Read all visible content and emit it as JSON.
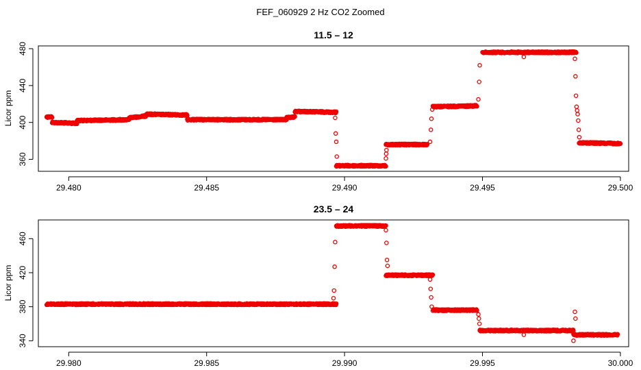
{
  "figure_title": "FEF_060929  2 Hz CO2 Zoomed",
  "chart_data": [
    {
      "type": "scatter",
      "title": "11.5 – 12",
      "xlabel": "",
      "ylabel": "Licor ppm",
      "xlim": [
        29.4789,
        29.5003
      ],
      "ylim": [
        347,
        483
      ],
      "xticks": [
        29.48,
        29.485,
        29.49,
        29.495,
        29.5
      ],
      "xtick_labels": [
        "29.480",
        "29.485",
        "29.490",
        "29.495",
        "29.500"
      ],
      "yticks": [
        360,
        400,
        440,
        480
      ],
      "ytick_labels": [
        "360",
        "400",
        "440",
        "480"
      ],
      "marker": "open-circle",
      "color": "#ee0000",
      "grid": false,
      "series": [
        {
          "segments": [
            {
              "x": [
                29.4792,
                29.4794
              ],
              "y": [
                406,
                406
              ]
            },
            {
              "x": [
                29.4794,
                29.4803
              ],
              "y": [
                400,
                399
              ]
            },
            {
              "x": [
                29.4803,
                29.4822
              ],
              "y": [
                402,
                403
              ]
            },
            {
              "x": [
                29.4822,
                29.4828
              ],
              "y": [
                405,
                407
              ]
            },
            {
              "x": [
                29.4828,
                29.4843
              ],
              "y": [
                409,
                408
              ]
            },
            {
              "x": [
                29.4843,
                29.4879
              ],
              "y": [
                403,
                403
              ]
            },
            {
              "x": [
                29.4879,
                29.4882
              ],
              "y": [
                405,
                406
              ]
            },
            {
              "x": [
                29.4882,
                29.4897
              ],
              "y": [
                412,
                411
              ]
            },
            {
              "x": [
                29.4897,
                29.4915
              ],
              "y": [
                353,
                353
              ]
            },
            {
              "x": [
                29.4915,
                29.493
              ],
              "y": [
                376,
                376
              ]
            },
            {
              "x": [
                29.4932,
                29.4948
              ],
              "y": [
                417,
                418
              ]
            },
            {
              "x": [
                29.495,
                29.4984
              ],
              "y": [
                476,
                476
              ]
            },
            {
              "x": [
                29.4985,
                29.5
              ],
              "y": [
                378,
                377
              ]
            }
          ],
          "points": [
            {
              "x": 29.48966,
              "y": 405
            },
            {
              "x": 29.48968,
              "y": 388
            },
            {
              "x": 29.4897,
              "y": 379
            },
            {
              "x": 29.48972,
              "y": 363
            },
            {
              "x": 29.4915,
              "y": 361
            },
            {
              "x": 29.49151,
              "y": 366
            },
            {
              "x": 29.49152,
              "y": 370
            },
            {
              "x": 29.4931,
              "y": 379
            },
            {
              "x": 29.49313,
              "y": 392
            },
            {
              "x": 29.49315,
              "y": 404
            },
            {
              "x": 29.49318,
              "y": 414
            },
            {
              "x": 29.49485,
              "y": 425
            },
            {
              "x": 29.49488,
              "y": 444
            },
            {
              "x": 29.4949,
              "y": 462
            },
            {
              "x": 29.4965,
              "y": 471
            },
            {
              "x": 29.49835,
              "y": 469
            },
            {
              "x": 29.49837,
              "y": 450
            },
            {
              "x": 29.49839,
              "y": 429
            },
            {
              "x": 29.49841,
              "y": 417
            },
            {
              "x": 29.49843,
              "y": 413
            },
            {
              "x": 29.49845,
              "y": 409
            },
            {
              "x": 29.49847,
              "y": 402
            },
            {
              "x": 29.49849,
              "y": 392
            },
            {
              "x": 29.49851,
              "y": 384
            }
          ]
        }
      ]
    },
    {
      "type": "scatter",
      "title": "23.5 – 24",
      "xlabel": "",
      "ylabel": "Licor ppm",
      "xlim": [
        29.9789,
        30.0003
      ],
      "ylim": [
        333,
        482
      ],
      "xticks": [
        29.98,
        29.985,
        29.99,
        29.995,
        30.0
      ],
      "xtick_labels": [
        "29.980",
        "29.985",
        "29.990",
        "29.995",
        "30.000"
      ],
      "yticks": [
        340,
        380,
        420,
        460
      ],
      "ytick_labels": [
        "340",
        "380",
        "420",
        "460"
      ],
      "marker": "open-circle",
      "color": "#ee0000",
      "grid": false,
      "series": [
        {
          "segments": [
            {
              "x": [
                29.9792,
                29.9897
              ],
              "y": [
                383,
                383
              ]
            },
            {
              "x": [
                29.9897,
                29.9915
              ],
              "y": [
                475,
                475
              ]
            },
            {
              "x": [
                29.9915,
                29.9932
              ],
              "y": [
                417,
                417
              ]
            },
            {
              "x": [
                29.9932,
                29.9948
              ],
              "y": [
                376,
                376
              ]
            },
            {
              "x": [
                29.9949,
                29.9983
              ],
              "y": [
                352,
                352
              ]
            },
            {
              "x": [
                29.9983,
                29.9999
              ],
              "y": [
                347,
                347
              ]
            }
          ],
          "points": [
            {
              "x": 29.9896,
              "y": 390
            },
            {
              "x": 29.98962,
              "y": 399
            },
            {
              "x": 29.98964,
              "y": 427
            },
            {
              "x": 29.98966,
              "y": 456
            },
            {
              "x": 29.9915,
              "y": 470
            },
            {
              "x": 29.99152,
              "y": 455
            },
            {
              "x": 29.99154,
              "y": 435
            },
            {
              "x": 29.99156,
              "y": 428
            },
            {
              "x": 29.9931,
              "y": 412
            },
            {
              "x": 29.99312,
              "y": 401
            },
            {
              "x": 29.99314,
              "y": 391
            },
            {
              "x": 29.99316,
              "y": 380
            },
            {
              "x": 29.99485,
              "y": 371
            },
            {
              "x": 29.99487,
              "y": 366
            },
            {
              "x": 29.99489,
              "y": 360
            },
            {
              "x": 29.9965,
              "y": 347
            },
            {
              "x": 29.99835,
              "y": 374
            },
            {
              "x": 29.99837,
              "y": 366
            },
            {
              "x": 29.9983,
              "y": 340
            }
          ]
        }
      ]
    }
  ]
}
